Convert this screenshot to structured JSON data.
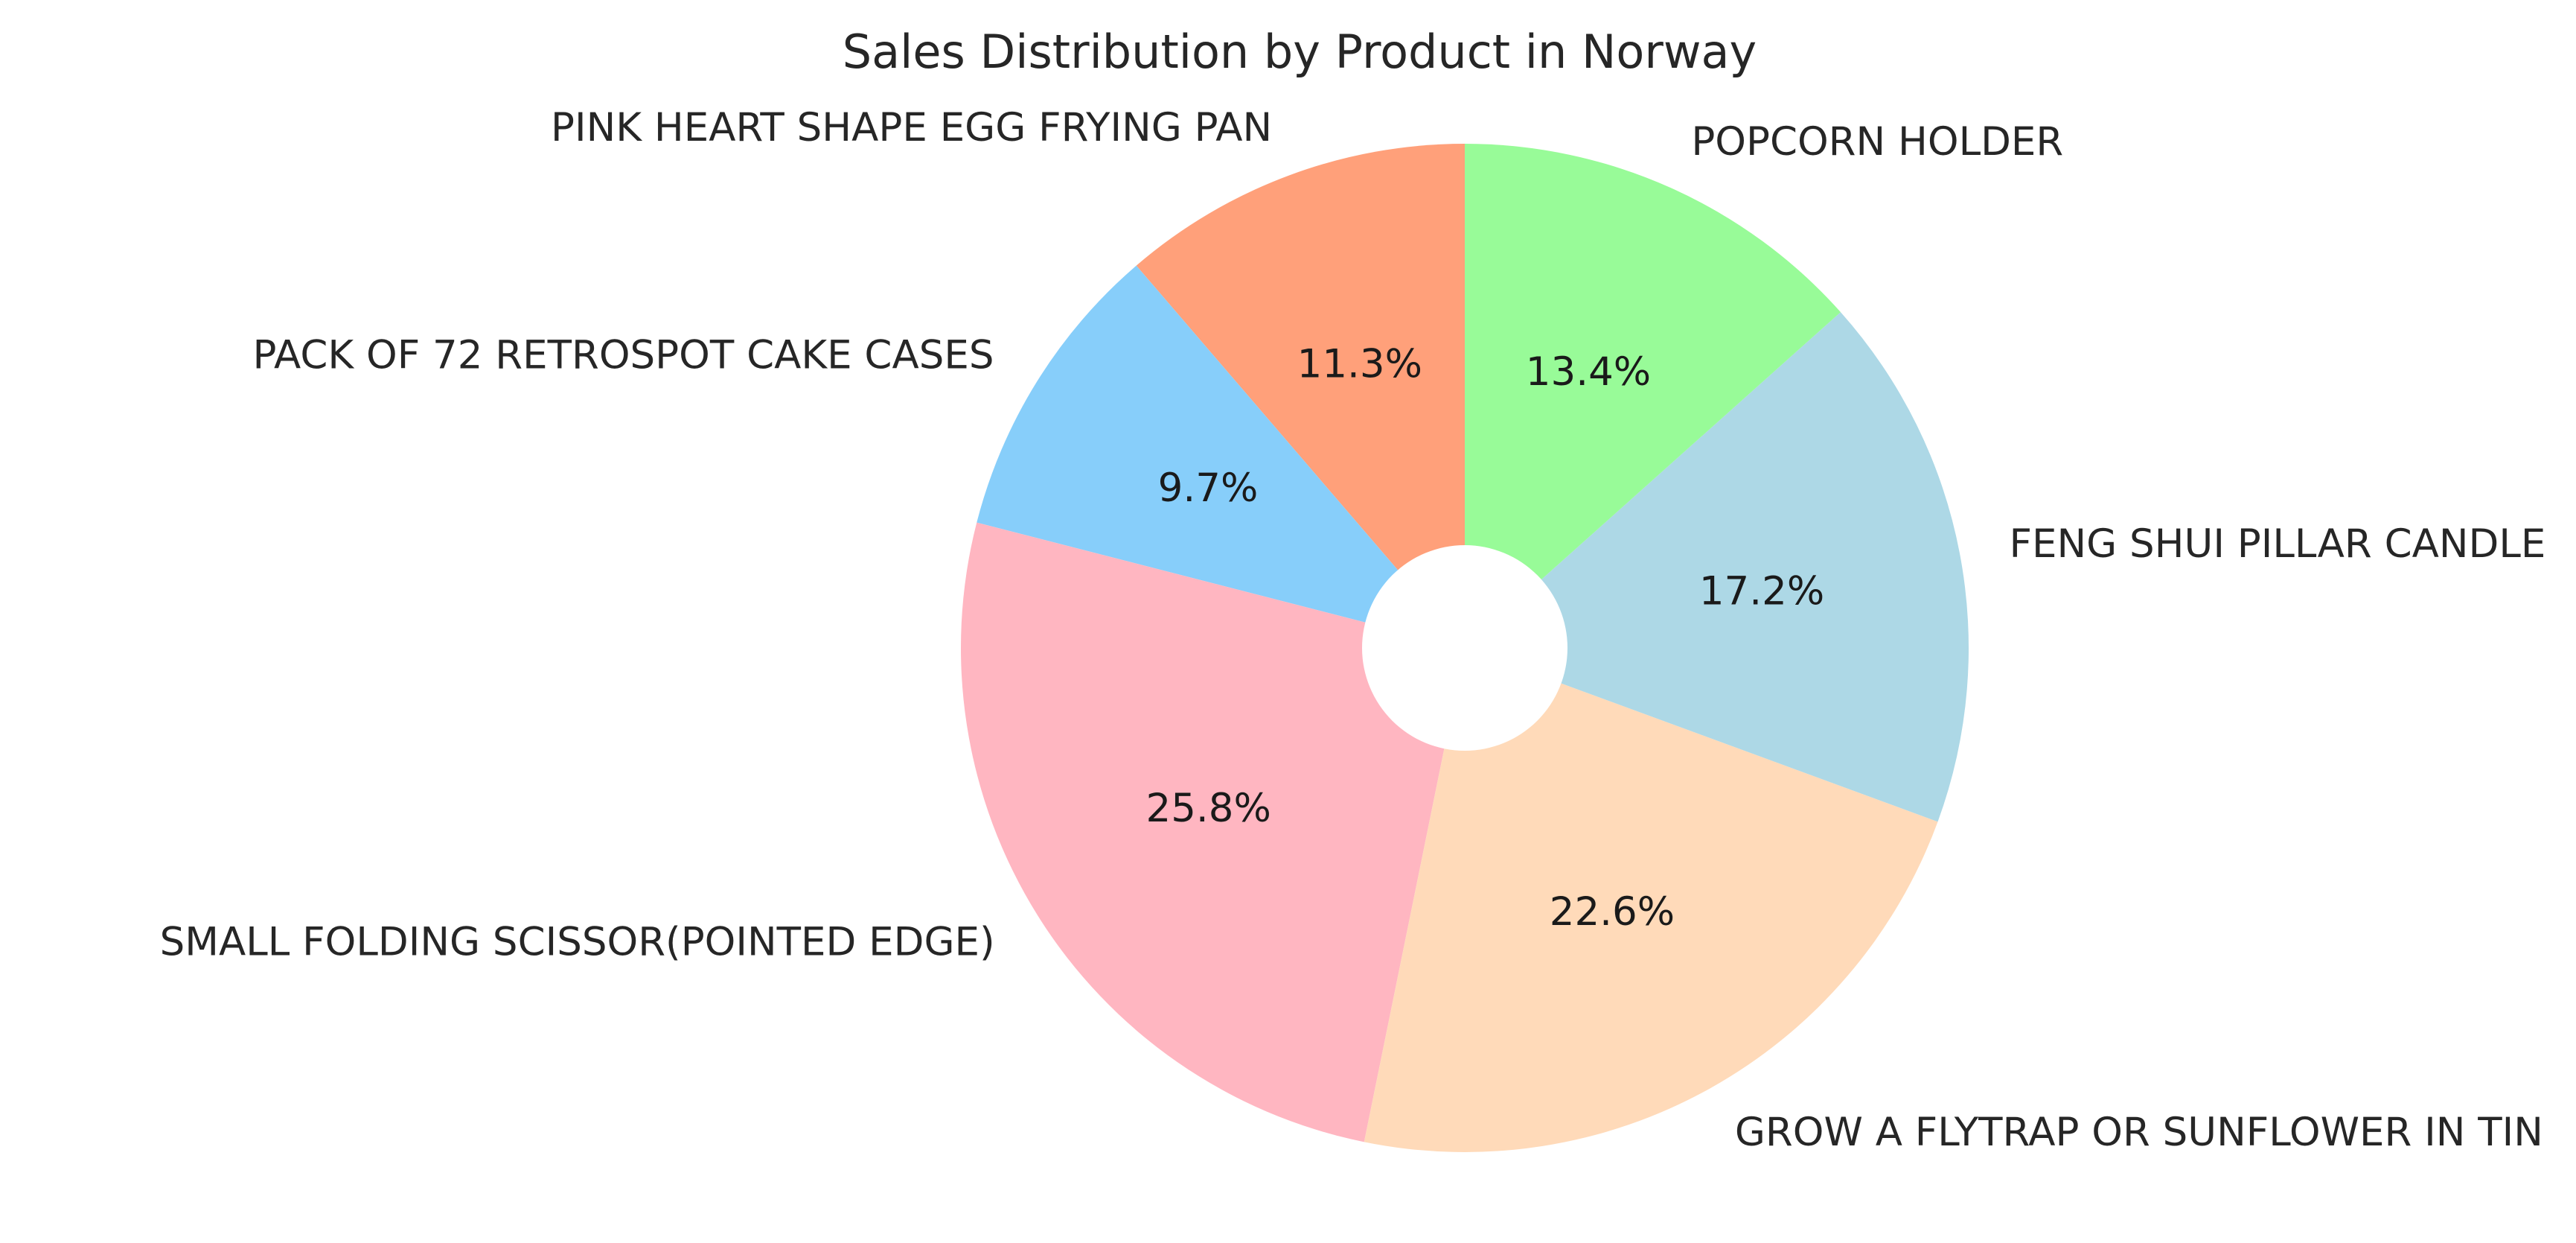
{
  "chart_data": {
    "type": "pie",
    "title": "Sales Distribution by Product in Norway",
    "donut": true,
    "start_angle_deg": 90,
    "direction": "counterclockwise",
    "slices": [
      {
        "label": "PINK HEART SHAPE EGG FRYING PAN",
        "value": 11.3,
        "pct_label": "11.3%",
        "color": "#FFA07A"
      },
      {
        "label": "PACK OF 72 RETROSPOT CAKE CASES",
        "value": 9.7,
        "pct_label": "9.7%",
        "color": "#87CEFA"
      },
      {
        "label": "SMALL FOLDING SCISSOR(POINTED EDGE)",
        "value": 25.8,
        "pct_label": "25.8%",
        "color": "#FFB6C1"
      },
      {
        "label": "GROW A FLYTRAP OR SUNFLOWER IN TIN",
        "value": 22.6,
        "pct_label": "22.6%",
        "color": "#FFDAB9"
      },
      {
        "label": "FENG SHUI PILLAR CANDLE",
        "value": 17.2,
        "pct_label": "17.2%",
        "color": "#ADD8E6"
      },
      {
        "label": "POPCORN HOLDER",
        "value": 13.4,
        "pct_label": "13.4%",
        "color": "#98FB98"
      }
    ]
  }
}
